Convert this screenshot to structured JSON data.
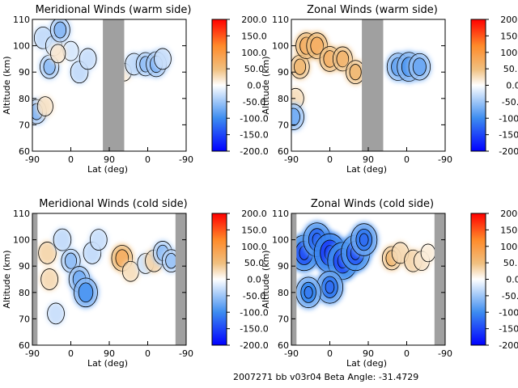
{
  "footer": "2007271 bb v03r04   Beta Angle: -31.4729",
  "colormap": {
    "stops": [
      "#0000ff",
      "#3d8cf0",
      "#ffffff",
      "#f0c080",
      "#ff8a2a",
      "#ff0000"
    ],
    "masked_color": "#a0a0a0",
    "contour_color": "#000000"
  },
  "chart_data": [
    {
      "type": "contour",
      "title": "Meridional Winds (warm side)",
      "xlabel": "Lat (deg)",
      "ylabel": "Altitude (km)",
      "xticks": [
        "-90",
        "0",
        "90",
        "0",
        "-90"
      ],
      "yticks": [
        "60",
        "70",
        "80",
        "90",
        "100",
        "110"
      ],
      "ylim": [
        60,
        110
      ],
      "colorbar": {
        "ticks": [
          "200.0",
          "150.0",
          "100.0",
          "50.0",
          "0.0",
          "-50.0",
          "-100.0",
          "-150.0",
          "-200.0"
        ],
        "range": [
          -200,
          200
        ]
      },
      "masked_lat_ranges": [
        [
          75,
          125
        ]
      ],
      "features": [
        {
          "lat": -65,
          "alt": 103,
          "value": -45
        },
        {
          "lat": -50,
          "alt": 92,
          "value": -55
        },
        {
          "lat": -40,
          "alt": 100,
          "value": -35
        },
        {
          "lat": -25,
          "alt": 106,
          "value": -60
        },
        {
          "lat": 0,
          "alt": 98,
          "value": -30
        },
        {
          "lat": 20,
          "alt": 90,
          "value": -45
        },
        {
          "lat": 40,
          "alt": 95,
          "value": -40
        },
        {
          "lat": -80,
          "alt": 75,
          "value": -60
        },
        {
          "lat": -60,
          "alt": 77,
          "value": 30
        },
        {
          "lat": -30,
          "alt": 97,
          "value": 25
        },
        {
          "lat": 125,
          "alt": 90,
          "value": 20
        },
        {
          "lat": 148,
          "alt": 93,
          "value": -45
        },
        {
          "lat": 175,
          "alt": 93,
          "value": -55
        },
        {
          "lat": 200,
          "alt": 93,
          "value": -65
        },
        {
          "lat": 215,
          "alt": 95,
          "value": -40
        }
      ]
    },
    {
      "type": "contour",
      "title": "Zonal Winds (warm side)",
      "xlabel": "Lat (deg)",
      "ylabel": "Altitude (km)",
      "xticks": [
        "-90",
        "0",
        "90",
        "0",
        "-90"
      ],
      "yticks": [
        "60",
        "70",
        "80",
        "90",
        "100",
        "110"
      ],
      "ylim": [
        60,
        110
      ],
      "colorbar": {
        "ticks": [
          "200.0",
          "150.0",
          "100.0",
          "50.0",
          "0.0",
          "-50.0",
          "-100.0",
          "-150.0",
          "-200.0"
        ],
        "range": [
          -200,
          200
        ]
      },
      "masked_lat_ranges": [
        [
          75,
          125
        ]
      ],
      "features": [
        {
          "lat": -70,
          "alt": 92,
          "value": 55
        },
        {
          "lat": -55,
          "alt": 100,
          "value": 70
        },
        {
          "lat": -30,
          "alt": 100,
          "value": 70
        },
        {
          "lat": 0,
          "alt": 95,
          "value": 65
        },
        {
          "lat": 30,
          "alt": 95,
          "value": 60
        },
        {
          "lat": 60,
          "alt": 90,
          "value": 55
        },
        {
          "lat": -80,
          "alt": 80,
          "value": 35
        },
        {
          "lat": -85,
          "alt": 73,
          "value": -70
        },
        {
          "lat": 160,
          "alt": 92,
          "value": -80
        },
        {
          "lat": 185,
          "alt": 92,
          "value": -90
        },
        {
          "lat": 210,
          "alt": 92,
          "value": -75
        }
      ]
    },
    {
      "type": "contour",
      "title": "Meridional Winds (cold side)",
      "xlabel": "Lat (deg)",
      "ylabel": "Altitude (km)",
      "xticks": [
        "-90",
        "0",
        "90",
        "0",
        "-90"
      ],
      "yticks": [
        "60",
        "70",
        "80",
        "90",
        "100",
        "110"
      ],
      "ylim": [
        60,
        110
      ],
      "colorbar": {
        "ticks": [
          "200.0",
          "150.0",
          "100.0",
          "50.0",
          "0.0",
          "-50.0",
          "-100.0",
          "-150.0",
          "-200.0"
        ],
        "range": [
          -200,
          200
        ]
      },
      "masked_lat_ranges": [
        [
          -90,
          -78
        ],
        [
          245,
          270
        ]
      ],
      "features": [
        {
          "lat": -55,
          "alt": 95,
          "value": 45
        },
        {
          "lat": -50,
          "alt": 85,
          "value": 40
        },
        {
          "lat": -20,
          "alt": 100,
          "value": -45
        },
        {
          "lat": 0,
          "alt": 92,
          "value": -55
        },
        {
          "lat": 20,
          "alt": 85,
          "value": -70
        },
        {
          "lat": 35,
          "alt": 80,
          "value": -90
        },
        {
          "lat": 50,
          "alt": 95,
          "value": -45
        },
        {
          "lat": 65,
          "alt": 100,
          "value": -40
        },
        {
          "lat": -35,
          "alt": 72,
          "value": -40
        },
        {
          "lat": 120,
          "alt": 93,
          "value": 70
        },
        {
          "lat": 140,
          "alt": 88,
          "value": 35
        },
        {
          "lat": 175,
          "alt": 91,
          "value": -35
        },
        {
          "lat": 195,
          "alt": 92,
          "value": 45
        },
        {
          "lat": 215,
          "alt": 95,
          "value": -55
        },
        {
          "lat": 235,
          "alt": 92,
          "value": -50
        }
      ]
    },
    {
      "type": "contour",
      "title": "Zonal Winds (cold side)",
      "xlabel": "Lat (deg)",
      "ylabel": "Altitude (km)",
      "xticks": [
        "-90",
        "0",
        "90",
        "0",
        "-90"
      ],
      "yticks": [
        "60",
        "70",
        "80",
        "90",
        "100",
        "110"
      ],
      "ylim": [
        60,
        110
      ],
      "colorbar": {
        "ticks": [
          "200.0",
          "150.0",
          "100.0",
          "50.0",
          "0.0",
          "-50.0",
          "-100.0",
          "-150.0",
          "-200.0"
        ],
        "range": [
          -200,
          200
        ]
      },
      "masked_lat_ranges": [
        [
          -90,
          -78
        ],
        [
          245,
          270
        ]
      ],
      "features": [
        {
          "lat": -60,
          "alt": 95,
          "value": -130
        },
        {
          "lat": -30,
          "alt": 100,
          "value": -120
        },
        {
          "lat": 0,
          "alt": 95,
          "value": -150
        },
        {
          "lat": 30,
          "alt": 92,
          "value": -140
        },
        {
          "lat": 60,
          "alt": 95,
          "value": -130
        },
        {
          "lat": 0,
          "alt": 82,
          "value": -110
        },
        {
          "lat": -50,
          "alt": 80,
          "value": -100
        },
        {
          "lat": 80,
          "alt": 100,
          "value": -110
        },
        {
          "lat": 145,
          "alt": 93,
          "value": 55
        },
        {
          "lat": 165,
          "alt": 95,
          "value": 40
        },
        {
          "lat": 195,
          "alt": 92,
          "value": 45
        },
        {
          "lat": 215,
          "alt": 92,
          "value": 30
        },
        {
          "lat": 230,
          "alt": 95,
          "value": 20
        }
      ]
    }
  ]
}
